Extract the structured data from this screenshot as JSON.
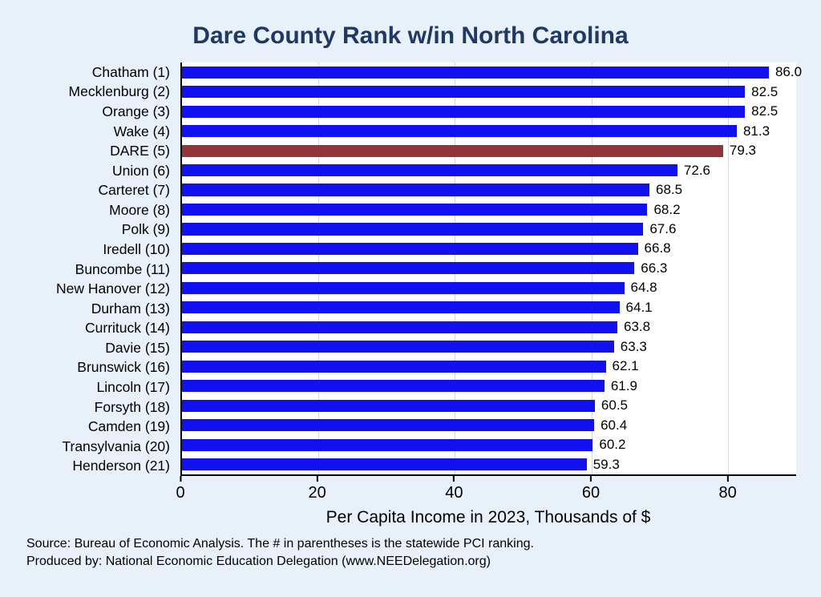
{
  "title": "Dare County Rank w/in North Carolina",
  "chart_data": {
    "type": "bar",
    "orientation": "horizontal",
    "title": "Dare County Rank w/in North Carolina",
    "categories": [
      "Chatham (1)",
      "Mecklenburg (2)",
      "Orange (3)",
      "Wake (4)",
      "DARE (5)",
      "Union (6)",
      "Carteret (7)",
      "Moore (8)",
      "Polk (9)",
      "Iredell (10)",
      "Buncombe (11)",
      "New Hanover (12)",
      "Durham (13)",
      "Currituck (14)",
      "Davie (15)",
      "Brunswick (16)",
      "Lincoln (17)",
      "Forsyth (18)",
      "Camden (19)",
      "Transylvania (20)",
      "Henderson (21)"
    ],
    "values": [
      86.0,
      82.5,
      82.5,
      81.3,
      79.3,
      72.6,
      68.5,
      68.2,
      67.6,
      66.8,
      66.3,
      64.8,
      64.1,
      63.8,
      63.3,
      62.1,
      61.9,
      60.5,
      60.4,
      60.2,
      59.3
    ],
    "value_labels": [
      "86.0",
      "82.5",
      "82.5",
      "81.3",
      "79.3",
      "72.6",
      "68.5",
      "68.2",
      "67.6",
      "66.8",
      "66.3",
      "64.8",
      "64.1",
      "63.8",
      "63.3",
      "62.1",
      "61.9",
      "60.5",
      "60.4",
      "60.2",
      "59.3"
    ],
    "highlight_index": 4,
    "highlight_category": "DARE (5)",
    "bar_color": "#1010f0",
    "highlight_color": "#90353b",
    "xlabel": "Per Capita Income in 2023, Thousands of $",
    "x_ticks": [
      0,
      20,
      40,
      60,
      80
    ],
    "xlim": [
      0,
      90
    ],
    "grid": true,
    "legend": "none"
  },
  "footer": {
    "source_line": "Source: Bureau of Economic Analysis. The # in parentheses is the statewide PCI ranking.",
    "produced_line": "Produced by: National Economic Education Delegation (www.NEEDelegation.org)"
  },
  "colors": {
    "background": "#e8f1f9",
    "plot_background": "#ffffff",
    "title": "#1f3864",
    "axis": "#000000",
    "gridline": "#d8d8d8"
  }
}
